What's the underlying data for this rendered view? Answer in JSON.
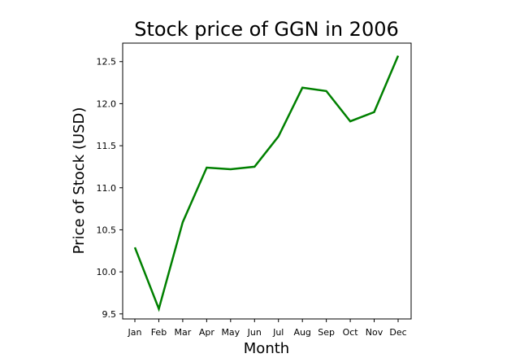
{
  "chart_data": {
    "type": "line",
    "title": "Stock price of GGN in 2006",
    "xlabel": "Month",
    "ylabel": "Price of Stock (USD)",
    "categories": [
      "Jan",
      "Feb",
      "Mar",
      "Apr",
      "May",
      "Jun",
      "Jul",
      "Aug",
      "Sep",
      "Oct",
      "Nov",
      "Dec"
    ],
    "series": [
      {
        "color": "#008000",
        "values": [
          10.29,
          9.56,
          10.59,
          11.24,
          11.22,
          11.25,
          11.61,
          12.19,
          12.15,
          11.79,
          11.9,
          12.57
        ]
      }
    ],
    "yticks": [
      "9.5",
      "10.0",
      "10.5",
      "11.0",
      "11.5",
      "12.0",
      "12.5"
    ],
    "ylim": [
      9.44,
      12.72
    ],
    "grid": false,
    "legend": "none"
  }
}
